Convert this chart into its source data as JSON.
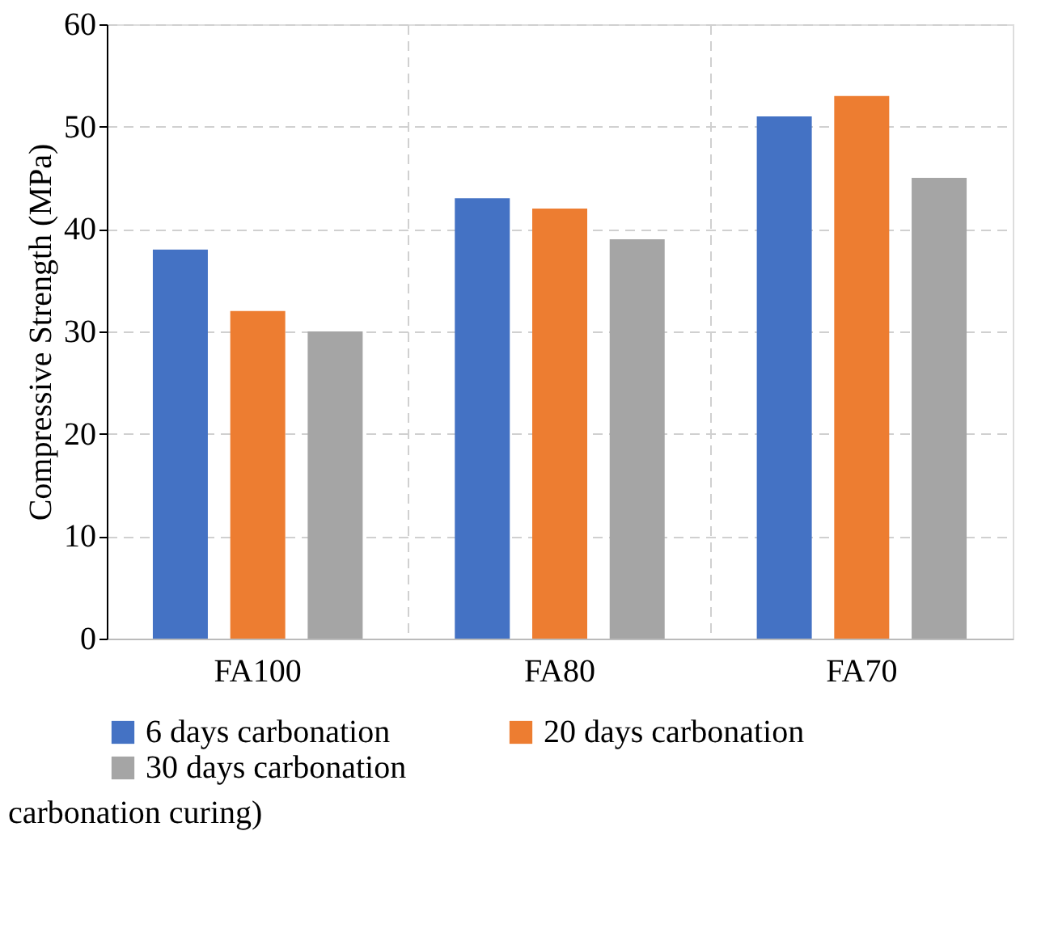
{
  "chart_data": {
    "type": "bar",
    "ylabel": "Compressive Strength (MPa)",
    "categories": [
      "FA100",
      "FA80",
      "FA70"
    ],
    "series": [
      {
        "name": "6 days carbonation",
        "color": "#4472c4",
        "values": [
          38,
          43,
          51
        ]
      },
      {
        "name": "20 days carbonation",
        "color": "#ed7d31",
        "values": [
          32,
          42,
          53
        ]
      },
      {
        "name": "30 days carbonation",
        "color": "#a5a5a5",
        "values": [
          30,
          39,
          45
        ]
      }
    ],
    "ylim": [
      0,
      60
    ],
    "yticks": [
      0,
      10,
      20,
      30,
      40,
      50,
      60
    ],
    "grid": true,
    "legend": "bottom",
    "annotations": [
      "carbonation curing)"
    ]
  }
}
